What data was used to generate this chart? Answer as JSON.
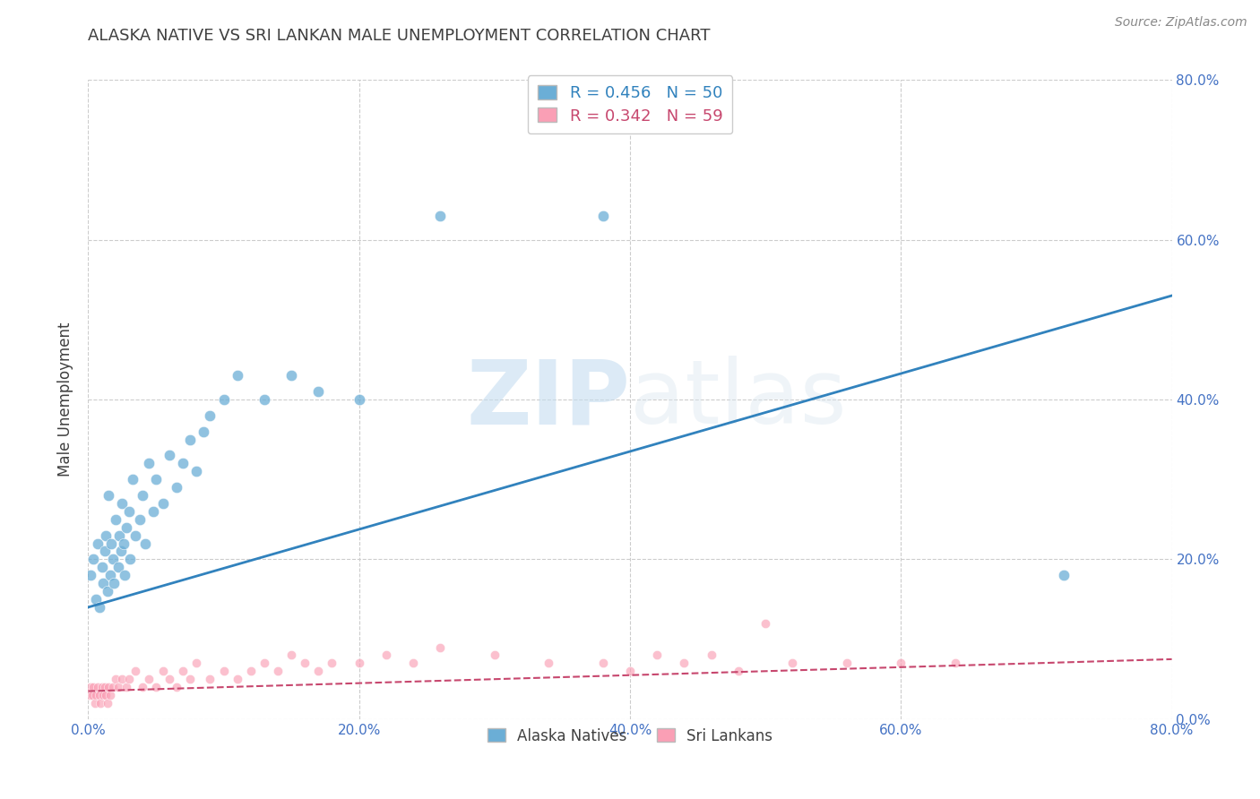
{
  "title": "ALASKA NATIVE VS SRI LANKAN MALE UNEMPLOYMENT CORRELATION CHART",
  "source": "Source: ZipAtlas.com",
  "ylabel": "Male Unemployment",
  "xlim": [
    0.0,
    0.8
  ],
  "ylim": [
    0.0,
    0.8
  ],
  "blue_color": "#6baed6",
  "blue_color_line": "#3182bd",
  "pink_color": "#fa9fb5",
  "pink_color_line": "#c7476e",
  "legend_label1": "Alaska Natives",
  "legend_label2": "Sri Lankans",
  "alaska_x": [
    0.002,
    0.004,
    0.006,
    0.007,
    0.008,
    0.01,
    0.011,
    0.012,
    0.013,
    0.014,
    0.015,
    0.016,
    0.017,
    0.018,
    0.019,
    0.02,
    0.022,
    0.023,
    0.024,
    0.025,
    0.026,
    0.027,
    0.028,
    0.03,
    0.031,
    0.033,
    0.035,
    0.038,
    0.04,
    0.042,
    0.045,
    0.048,
    0.05,
    0.055,
    0.06,
    0.065,
    0.07,
    0.075,
    0.08,
    0.085,
    0.09,
    0.1,
    0.11,
    0.13,
    0.15,
    0.17,
    0.2,
    0.26,
    0.38,
    0.72
  ],
  "alaska_y": [
    0.18,
    0.2,
    0.15,
    0.22,
    0.14,
    0.19,
    0.17,
    0.21,
    0.23,
    0.16,
    0.28,
    0.18,
    0.22,
    0.2,
    0.17,
    0.25,
    0.19,
    0.23,
    0.21,
    0.27,
    0.22,
    0.18,
    0.24,
    0.26,
    0.2,
    0.3,
    0.23,
    0.25,
    0.28,
    0.22,
    0.32,
    0.26,
    0.3,
    0.27,
    0.33,
    0.29,
    0.32,
    0.35,
    0.31,
    0.36,
    0.38,
    0.4,
    0.43,
    0.4,
    0.43,
    0.41,
    0.4,
    0.63,
    0.63,
    0.18
  ],
  "sri_x": [
    0.001,
    0.002,
    0.003,
    0.004,
    0.005,
    0.006,
    0.007,
    0.008,
    0.009,
    0.01,
    0.011,
    0.012,
    0.013,
    0.014,
    0.015,
    0.016,
    0.018,
    0.02,
    0.022,
    0.025,
    0.028,
    0.03,
    0.035,
    0.04,
    0.045,
    0.05,
    0.055,
    0.06,
    0.065,
    0.07,
    0.075,
    0.08,
    0.09,
    0.1,
    0.11,
    0.12,
    0.13,
    0.14,
    0.15,
    0.16,
    0.17,
    0.18,
    0.2,
    0.22,
    0.24,
    0.26,
    0.3,
    0.34,
    0.38,
    0.4,
    0.42,
    0.44,
    0.46,
    0.48,
    0.5,
    0.52,
    0.56,
    0.6,
    0.64
  ],
  "sri_y": [
    0.03,
    0.04,
    0.03,
    0.04,
    0.02,
    0.03,
    0.04,
    0.03,
    0.02,
    0.04,
    0.03,
    0.04,
    0.03,
    0.02,
    0.04,
    0.03,
    0.04,
    0.05,
    0.04,
    0.05,
    0.04,
    0.05,
    0.06,
    0.04,
    0.05,
    0.04,
    0.06,
    0.05,
    0.04,
    0.06,
    0.05,
    0.07,
    0.05,
    0.06,
    0.05,
    0.06,
    0.07,
    0.06,
    0.08,
    0.07,
    0.06,
    0.07,
    0.07,
    0.08,
    0.07,
    0.09,
    0.08,
    0.07,
    0.07,
    0.06,
    0.08,
    0.07,
    0.08,
    0.06,
    0.12,
    0.07,
    0.07,
    0.07,
    0.07
  ],
  "alaska_line_x": [
    0.0,
    0.8
  ],
  "alaska_line_y": [
    0.14,
    0.53
  ],
  "sri_line_x": [
    0.0,
    0.8
  ],
  "sri_line_y": [
    0.035,
    0.075
  ],
  "background_color": "#ffffff",
  "grid_color": "#cccccc",
  "title_color": "#404040",
  "tick_color": "#4472c4",
  "source_color": "#888888",
  "R_alaska": "0.456",
  "N_alaska": "50",
  "R_sri": "0.342",
  "N_sri": "59"
}
